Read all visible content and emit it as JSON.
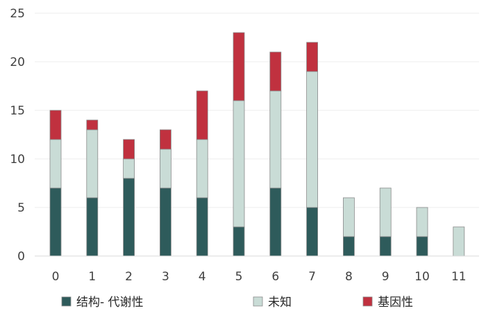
{
  "chart_data": {
    "type": "bar",
    "stacked": true,
    "categories": [
      "0",
      "1",
      "2",
      "3",
      "4",
      "5",
      "6",
      "7",
      "8",
      "9",
      "10",
      "11"
    ],
    "series": [
      {
        "name": "结构- 代谢性",
        "color": "#2e5b5b",
        "values": [
          7,
          6,
          8,
          7,
          6,
          3,
          7,
          5,
          2,
          2,
          2,
          0
        ]
      },
      {
        "name": "未知",
        "color": "#c9dcd6",
        "values": [
          5,
          7,
          2,
          4,
          6,
          13,
          10,
          14,
          4,
          5,
          3,
          3
        ]
      },
      {
        "name": "基因性",
        "color": "#c0313f",
        "values": [
          3,
          1,
          2,
          2,
          5,
          7,
          4,
          3,
          0,
          0,
          0,
          0
        ]
      }
    ],
    "ylim": [
      0,
      25
    ],
    "yticks": [
      "0",
      "5",
      "10",
      "15",
      "20",
      "25"
    ],
    "grid": true,
    "legend": "bottom"
  }
}
